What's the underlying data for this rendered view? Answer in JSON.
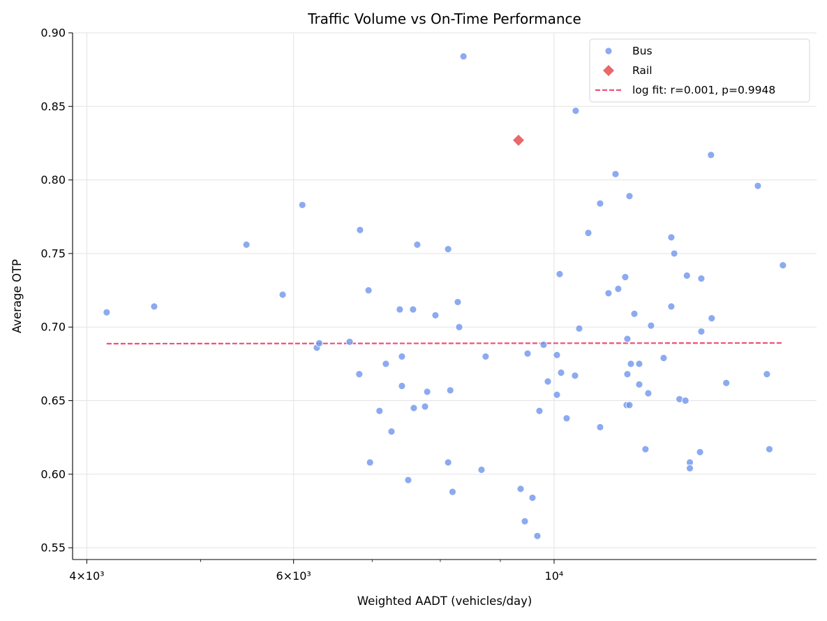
{
  "chart_data": {
    "type": "scatter",
    "title": "Traffic Volume vs On-Time Performance",
    "xlabel": "Weighted AADT (vehicles/day)",
    "ylabel": "Average OTP",
    "xscale": "log",
    "xlim": [
      3890,
      16730
    ],
    "ylim": [
      0.542,
      0.9
    ],
    "x_ticks": [
      {
        "value": 4000,
        "label": "4×10³"
      },
      {
        "value": 6000,
        "label": "6×10³"
      },
      {
        "value": 10000,
        "label": "10⁴"
      }
    ],
    "x_minor_ticks": [
      5000,
      7000,
      8000,
      9000
    ],
    "y_ticks": [
      {
        "value": 0.55,
        "label": "0.55"
      },
      {
        "value": 0.6,
        "label": "0.60"
      },
      {
        "value": 0.65,
        "label": "0.65"
      },
      {
        "value": 0.7,
        "label": "0.70"
      },
      {
        "value": 0.75,
        "label": "0.75"
      },
      {
        "value": 0.8,
        "label": "0.80"
      },
      {
        "value": 0.85,
        "label": "0.85"
      },
      {
        "value": 0.9,
        "label": "0.90"
      }
    ],
    "grid": true,
    "legend_position": "top-right",
    "series": [
      {
        "name": "Bus",
        "marker": "circle",
        "color": "#6f95ec",
        "points": [
          [
            4159,
            0.71
          ],
          [
            4565,
            0.714
          ],
          [
            5470,
            0.756
          ],
          [
            5873,
            0.722
          ],
          [
            6104,
            0.783
          ],
          [
            6280,
            0.686
          ],
          [
            6310,
            0.689
          ],
          [
            6697,
            0.69
          ],
          [
            6835,
            0.766
          ],
          [
            6825,
            0.668
          ],
          [
            6950,
            0.725
          ],
          [
            6970,
            0.608
          ],
          [
            7101,
            0.643
          ],
          [
            7190,
            0.675
          ],
          [
            7270,
            0.629
          ],
          [
            7389,
            0.712
          ],
          [
            7420,
            0.68
          ],
          [
            7420,
            0.66
          ],
          [
            7512,
            0.596
          ],
          [
            7584,
            0.712
          ],
          [
            7595,
            0.645
          ],
          [
            7647,
            0.756
          ],
          [
            7764,
            0.646
          ],
          [
            7797,
            0.656
          ],
          [
            7924,
            0.708
          ],
          [
            8124,
            0.753
          ],
          [
            8124,
            0.608
          ],
          [
            8158,
            0.657
          ],
          [
            8194,
            0.588
          ],
          [
            8279,
            0.717
          ],
          [
            8302,
            0.7
          ],
          [
            8372,
            0.884
          ],
          [
            8673,
            0.603
          ],
          [
            8744,
            0.68
          ],
          [
            9365,
            0.59
          ],
          [
            9442,
            0.568
          ],
          [
            9494,
            0.682
          ],
          [
            9585,
            0.584
          ],
          [
            9677,
            0.558
          ],
          [
            9717,
            0.643
          ],
          [
            9797,
            0.688
          ],
          [
            9878,
            0.663
          ],
          [
            10055,
            0.654
          ],
          [
            10055,
            0.681
          ],
          [
            10110,
            0.736
          ],
          [
            10138,
            0.669
          ],
          [
            10249,
            0.638
          ],
          [
            10419,
            0.667
          ],
          [
            10433,
            0.847
          ],
          [
            10505,
            0.699
          ],
          [
            10694,
            0.764
          ],
          [
            10945,
            0.784
          ],
          [
            10945,
            0.632
          ],
          [
            11126,
            0.723
          ],
          [
            11280,
            0.804
          ],
          [
            11340,
            0.726
          ],
          [
            11497,
            0.734
          ],
          [
            11545,
            0.692
          ],
          [
            11545,
            0.668
          ],
          [
            11529,
            0.647
          ],
          [
            11593,
            0.647
          ],
          [
            11593,
            0.789
          ],
          [
            11625,
            0.675
          ],
          [
            11705,
            0.709
          ],
          [
            11817,
            0.675
          ],
          [
            11817,
            0.661
          ],
          [
            11962,
            0.617
          ],
          [
            12028,
            0.655
          ],
          [
            12094,
            0.701
          ],
          [
            12397,
            0.679
          ],
          [
            12584,
            0.761
          ],
          [
            12584,
            0.714
          ],
          [
            12657,
            0.75
          ],
          [
            12787,
            0.651
          ],
          [
            12938,
            0.65
          ],
          [
            12975,
            0.735
          ],
          [
            13050,
            0.608
          ],
          [
            13050,
            0.604
          ],
          [
            13313,
            0.615
          ],
          [
            13347,
            0.733
          ],
          [
            13347,
            0.697
          ],
          [
            13603,
            0.817
          ],
          [
            13621,
            0.706
          ],
          [
            14016,
            0.662
          ],
          [
            14911,
            0.796
          ],
          [
            15178,
            0.668
          ],
          [
            15252,
            0.617
          ],
          [
            15662,
            0.742
          ]
        ]
      },
      {
        "name": "Rail",
        "marker": "diamond",
        "color": "#e8575a",
        "points": [
          [
            9326,
            0.827
          ]
        ]
      }
    ],
    "fit": {
      "name": "log fit: r=0.001, p=0.9948",
      "color": "#ef4f78",
      "style": "dashed",
      "points": [
        [
          4159,
          0.6887
        ],
        [
          15662,
          0.6892
        ]
      ]
    }
  }
}
